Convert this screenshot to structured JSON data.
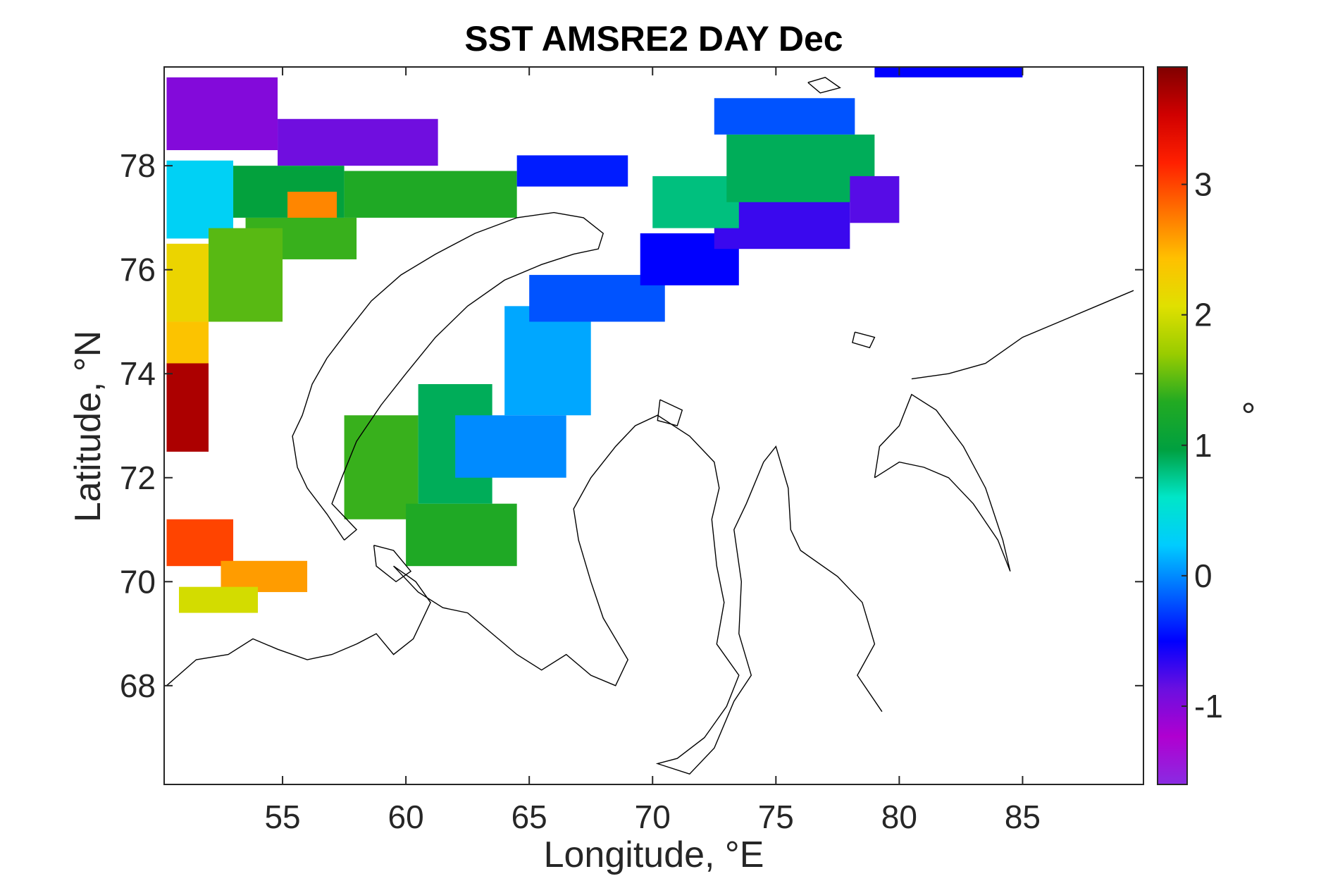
{
  "chart_data": {
    "type": "heatmap",
    "title": "SST AMSRE2 DAY Dec",
    "xlabel": "Longitude, °E",
    "ylabel": "Latitude, °N",
    "xlim": [
      50.2,
      89.9
    ],
    "ylim": [
      66.1,
      79.9
    ],
    "xticks": [
      55,
      60,
      65,
      70,
      75,
      80,
      85
    ],
    "xtick_labels": [
      "55",
      "60",
      "65",
      "70",
      "75",
      "80",
      "85"
    ],
    "yticks": [
      68,
      70,
      72,
      74,
      76,
      78
    ],
    "ytick_labels": [
      "68",
      "70",
      "72",
      "74",
      "76",
      "78"
    ],
    "colorbar": {
      "label": "°",
      "clim": [
        -1.6,
        3.9
      ],
      "ticks": [
        -1,
        0,
        1,
        2,
        3
      ],
      "tick_labels": [
        "-1",
        "0",
        "1",
        "2",
        "3"
      ],
      "colormap": [
        "#8a2be2",
        "#b000d0",
        "#6a0fe0",
        "#0000ff",
        "#0066ff",
        "#00ccff",
        "#00e6c8",
        "#00a040",
        "#22aa22",
        "#99cc00",
        "#e0e000",
        "#ffc000",
        "#ff7000",
        "#ff2000",
        "#d00000",
        "#800000"
      ]
    },
    "grid": false,
    "patches": [
      {
        "lon": [
          50.3,
          54.8
        ],
        "lat": [
          78.3,
          79.7
        ],
        "value": -1.0
      },
      {
        "lon": [
          54.8,
          61.3
        ],
        "lat": [
          78.0,
          78.9
        ],
        "value": -0.9
      },
      {
        "lon": [
          50.3,
          53.0
        ],
        "lat": [
          76.6,
          78.1
        ],
        "value": 0.3
      },
      {
        "lon": [
          53.0,
          57.5
        ],
        "lat": [
          77.0,
          78.0
        ],
        "value": 1.0
      },
      {
        "lon": [
          55.2,
          57.2
        ],
        "lat": [
          76.9,
          77.5
        ],
        "value": 2.7
      },
      {
        "lon": [
          53.5,
          58.0
        ],
        "lat": [
          76.2,
          77.0
        ],
        "value": 1.4
      },
      {
        "lon": [
          57.5,
          64.5
        ],
        "lat": [
          77.0,
          77.9
        ],
        "value": 1.3
      },
      {
        "lon": [
          64.5,
          69.0
        ],
        "lat": [
          77.6,
          78.2
        ],
        "value": -0.4
      },
      {
        "lon": [
          50.3,
          52.5
        ],
        "lat": [
          75.0,
          76.5
        ],
        "value": 2.2
      },
      {
        "lon": [
          52.0,
          55.0
        ],
        "lat": [
          75.0,
          76.8
        ],
        "value": 1.5
      },
      {
        "lon": [
          50.3,
          52.0
        ],
        "lat": [
          74.2,
          75.0
        ],
        "value": 2.4
      },
      {
        "lon": [
          50.3,
          52.0
        ],
        "lat": [
          72.5,
          74.2
        ],
        "value": 3.7
      },
      {
        "lon": [
          50.3,
          53.0
        ],
        "lat": [
          70.3,
          71.2
        ],
        "value": 3.0
      },
      {
        "lon": [
          52.5,
          56.0
        ],
        "lat": [
          69.8,
          70.4
        ],
        "value": 2.6
      },
      {
        "lon": [
          50.8,
          54.0
        ],
        "lat": [
          69.4,
          69.9
        ],
        "value": 2.0
      },
      {
        "lon": [
          57.5,
          60.5
        ],
        "lat": [
          71.2,
          73.2
        ],
        "value": 1.4
      },
      {
        "lon": [
          60.0,
          64.5
        ],
        "lat": [
          70.3,
          71.5
        ],
        "value": 1.3
      },
      {
        "lon": [
          60.5,
          63.5
        ],
        "lat": [
          71.5,
          73.8
        ],
        "value": 0.9
      },
      {
        "lon": [
          62.0,
          66.5
        ],
        "lat": [
          72.0,
          73.2
        ],
        "value": 0.0
      },
      {
        "lon": [
          64.0,
          67.5
        ],
        "lat": [
          73.2,
          75.3
        ],
        "value": 0.1
      },
      {
        "lon": [
          65.0,
          70.5
        ],
        "lat": [
          75.0,
          75.9
        ],
        "value": -0.2
      },
      {
        "lon": [
          69.5,
          73.5
        ],
        "lat": [
          75.7,
          76.7
        ],
        "value": -0.5
      },
      {
        "lon": [
          72.5,
          78.0
        ],
        "lat": [
          76.4,
          77.4
        ],
        "value": -0.7
      },
      {
        "lon": [
          70.0,
          73.5
        ],
        "lat": [
          76.8,
          77.8
        ],
        "value": 0.8
      },
      {
        "lon": [
          73.0,
          79.0
        ],
        "lat": [
          77.3,
          78.6
        ],
        "value": 0.9
      },
      {
        "lon": [
          78.0,
          80.0
        ],
        "lat": [
          76.9,
          77.8
        ],
        "value": -0.8
      },
      {
        "lon": [
          72.5,
          78.2
        ],
        "lat": [
          78.6,
          79.3
        ],
        "value": -0.2
      },
      {
        "lon": [
          79.0,
          85.0
        ],
        "lat": [
          79.7,
          79.9
        ],
        "value": -0.5
      }
    ]
  }
}
